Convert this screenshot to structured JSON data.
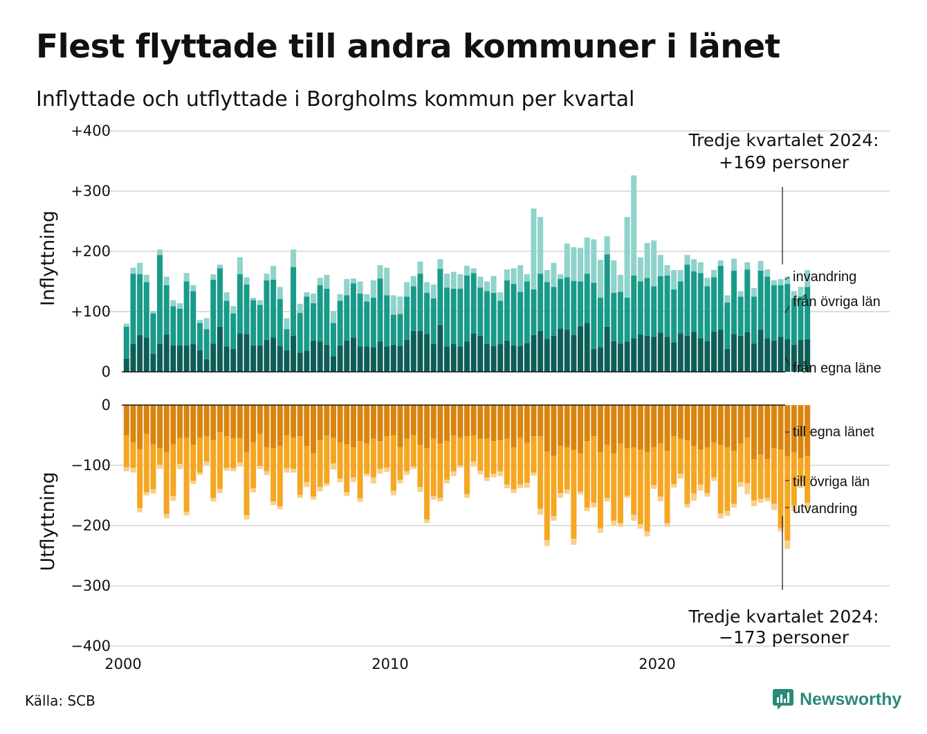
{
  "title": "Flest flyttade till andra kommuner i länet",
  "subtitle": "Inflyttade och utflyttade i Borgholms kommun per kvartal",
  "source": "Källa: SCB",
  "brand": "Newsworthy",
  "colors": {
    "in_own": "#0e5e57",
    "in_other": "#1a9a89",
    "in_abroad": "#8fd3cb",
    "out_own": "#d9850f",
    "out_other": "#f5a623",
    "out_abroad": "#f8d08e",
    "grid": "#dedede",
    "brand": "#2b8a7a"
  },
  "chart_data": [
    {
      "type": "bar",
      "stacked": true,
      "ylabel": "Inflyttning",
      "ylim": [
        0,
        400
      ],
      "yticks": [
        "0",
        "+100",
        "+200",
        "+300",
        "+400"
      ],
      "annotation": {
        "line1": "Tredje kvartalet 2024:",
        "line2": "+169 personer"
      },
      "series_labels": [
        "invandring",
        "från övriga län",
        "från egna läne"
      ],
      "x": "quarters 2000Q1–2024Q3",
      "series": [
        {
          "name": "från egna läne",
          "values": [
            22,
            46,
            61,
            57,
            30,
            46,
            62,
            44,
            44,
            44,
            46,
            36,
            21,
            47,
            75,
            42,
            38,
            64,
            63,
            44,
            44,
            53,
            57,
            43,
            36,
            60,
            32,
            35,
            52,
            50,
            45,
            26,
            44,
            52,
            57,
            42,
            42,
            41,
            50,
            42,
            45,
            43,
            53,
            68,
            68,
            63,
            46,
            78,
            42,
            46,
            42,
            50,
            64,
            60,
            46,
            43,
            46,
            52,
            44,
            43,
            48,
            61,
            68,
            55,
            60,
            72,
            70,
            61,
            76,
            81,
            38,
            41,
            75,
            51,
            47,
            50,
            56,
            62,
            60,
            58,
            65,
            58,
            49,
            64,
            60,
            67,
            56,
            51,
            67,
            70,
            38,
            63,
            60,
            66,
            47,
            70,
            56,
            52,
            58,
            54,
            45,
            53,
            54
          ]
        },
        {
          "name": "från övriga län",
          "values": [
            53,
            117,
            101,
            92,
            67,
            148,
            82,
            65,
            61,
            106,
            88,
            45,
            50,
            106,
            97,
            76,
            59,
            98,
            82,
            75,
            67,
            99,
            96,
            78,
            35,
            114,
            66,
            90,
            62,
            94,
            93,
            55,
            74,
            75,
            90,
            88,
            75,
            82,
            105,
            85,
            50,
            53,
            72,
            74,
            95,
            68,
            76,
            93,
            98,
            92,
            96,
            110,
            100,
            80,
            88,
            88,
            72,
            100,
            102,
            90,
            102,
            76,
            95,
            94,
            81,
            82,
            87,
            90,
            74,
            82,
            110,
            82,
            120,
            80,
            86,
            73,
            104,
            88,
            96,
            84,
            94,
            102,
            88,
            86,
            118,
            100,
            108,
            91,
            90,
            106,
            77,
            105,
            65,
            104,
            78,
            98,
            102,
            92,
            86,
            92,
            77,
            72,
            87
          ]
        },
        {
          "name": "invandring",
          "values": [
            5,
            10,
            19,
            12,
            4,
            9,
            14,
            10,
            9,
            14,
            10,
            5,
            18,
            9,
            6,
            14,
            12,
            28,
            12,
            4,
            8,
            11,
            23,
            20,
            18,
            29,
            15,
            7,
            16,
            12,
            23,
            20,
            11,
            27,
            8,
            20,
            12,
            29,
            22,
            46,
            32,
            29,
            24,
            17,
            20,
            18,
            23,
            16,
            23,
            28,
            24,
            16,
            8,
            18,
            16,
            28,
            14,
            18,
            26,
            44,
            12,
            134,
            94,
            20,
            40,
            8,
            56,
            56,
            56,
            60,
            72,
            63,
            30,
            54,
            28,
            134,
            166,
            40,
            58,
            76,
            35,
            17,
            32,
            19,
            16,
            20,
            18,
            14,
            12,
            9,
            12,
            20,
            9,
            12,
            14,
            16,
            12,
            8,
            10,
            12,
            12,
            16,
            28
          ]
        }
      ]
    },
    {
      "type": "bar",
      "stacked": true,
      "ylabel": "Utflyttning",
      "ylim": [
        -400,
        0
      ],
      "yticks": [
        "0",
        "−100",
        "−200",
        "−300",
        "−400"
      ],
      "annotation": {
        "line1": "Tredje kvartalet 2024:",
        "line2": "−173 personer"
      },
      "series_labels": [
        "till egna länet",
        "till övriga län",
        "utvandring"
      ],
      "x": "quarters 2000Q1–2024Q3",
      "series": [
        {
          "name": "till egna länet",
          "values": [
            -50,
            -62,
            -73,
            -48,
            -65,
            -72,
            -78,
            -65,
            -55,
            -54,
            -66,
            -54,
            -52,
            -58,
            -45,
            -52,
            -55,
            -55,
            -78,
            -62,
            -48,
            -70,
            -72,
            -68,
            -50,
            -54,
            -52,
            -68,
            -80,
            -58,
            -50,
            -54,
            -62,
            -65,
            -70,
            -60,
            -64,
            -56,
            -60,
            -52,
            -50,
            -70,
            -56,
            -50,
            -66,
            -72,
            -56,
            -64,
            -60,
            -50,
            -54,
            -52,
            -50,
            -56,
            -56,
            -60,
            -58,
            -56,
            -70,
            -54,
            -63,
            -52,
            -52,
            -77,
            -84,
            -68,
            -70,
            -75,
            -80,
            -60,
            -52,
            -78,
            -66,
            -80,
            -64,
            -72,
            -70,
            -74,
            -78,
            -70,
            -64,
            -76,
            -52,
            -56,
            -59,
            -68,
            -74,
            -70,
            -62,
            -66,
            -70,
            -76,
            -64,
            -54,
            -90,
            -82,
            -90,
            -72,
            -74,
            -85,
            -78,
            -88,
            -84
          ]
        },
        {
          "name": "till övriga län",
          "values": [
            -53,
            -42,
            -98,
            -97,
            -75,
            -27,
            -103,
            -86,
            -43,
            -123,
            -60,
            -58,
            -42,
            -96,
            -94,
            -52,
            -50,
            -40,
            -105,
            -76,
            -53,
            -40,
            -88,
            -100,
            -55,
            -52,
            -97,
            -60,
            -72,
            -78,
            -80,
            -43,
            -60,
            -80,
            -50,
            -95,
            -50,
            -64,
            -46,
            -52,
            -92,
            -54,
            -54,
            -52,
            -70,
            -118,
            -95,
            -90,
            -64,
            -60,
            -46,
            -96,
            -44,
            -53,
            -64,
            -54,
            -52,
            -76,
            -70,
            -78,
            -66,
            -60,
            -120,
            -147,
            -100,
            -78,
            -70,
            -147,
            -64,
            -110,
            -110,
            -126,
            -88,
            -112,
            -132,
            -78,
            -112,
            -124,
            -132,
            -63,
            -88,
            -120,
            -79,
            -58,
            -105,
            -79,
            -58,
            -76,
            -58,
            -114,
            -106,
            -88,
            -64,
            -76,
            -68,
            -74,
            -64,
            -92,
            -130,
            -140,
            -88,
            -40,
            -78
          ]
        },
        {
          "name": "utvandring",
          "values": [
            -7,
            -8,
            -7,
            -5,
            -7,
            -7,
            -7,
            -8,
            -8,
            -6,
            -5,
            -4,
            -6,
            -6,
            -7,
            -5,
            -5,
            -7,
            -7,
            -7,
            -5,
            -6,
            -6,
            -5,
            -7,
            -6,
            -5,
            -8,
            -5,
            -7,
            -4,
            -10,
            -6,
            -6,
            -8,
            -6,
            -4,
            -10,
            -8,
            -7,
            -8,
            -6,
            -6,
            -4,
            -8,
            -6,
            -6,
            -6,
            -6,
            -8,
            -4,
            -6,
            -8,
            -6,
            -6,
            -6,
            -8,
            -6,
            -6,
            -6,
            -8,
            -5,
            -10,
            -10,
            -8,
            -8,
            -7,
            -10,
            -4,
            -6,
            -8,
            -8,
            -6,
            -8,
            -6,
            -4,
            -10,
            -7,
            -8,
            -6,
            -8,
            -6,
            -6,
            -8,
            -6,
            -12,
            -10,
            -6,
            -6,
            -8,
            -8,
            -6,
            -8,
            -18,
            -10,
            -6,
            -6,
            -10,
            -6,
            -14,
            -10,
            -10,
            -10
          ]
        }
      ]
    }
  ],
  "x_axis": {
    "ticks": [
      "2000",
      "2010",
      "2020"
    ],
    "tick_years": [
      2000,
      2010,
      2020
    ]
  }
}
